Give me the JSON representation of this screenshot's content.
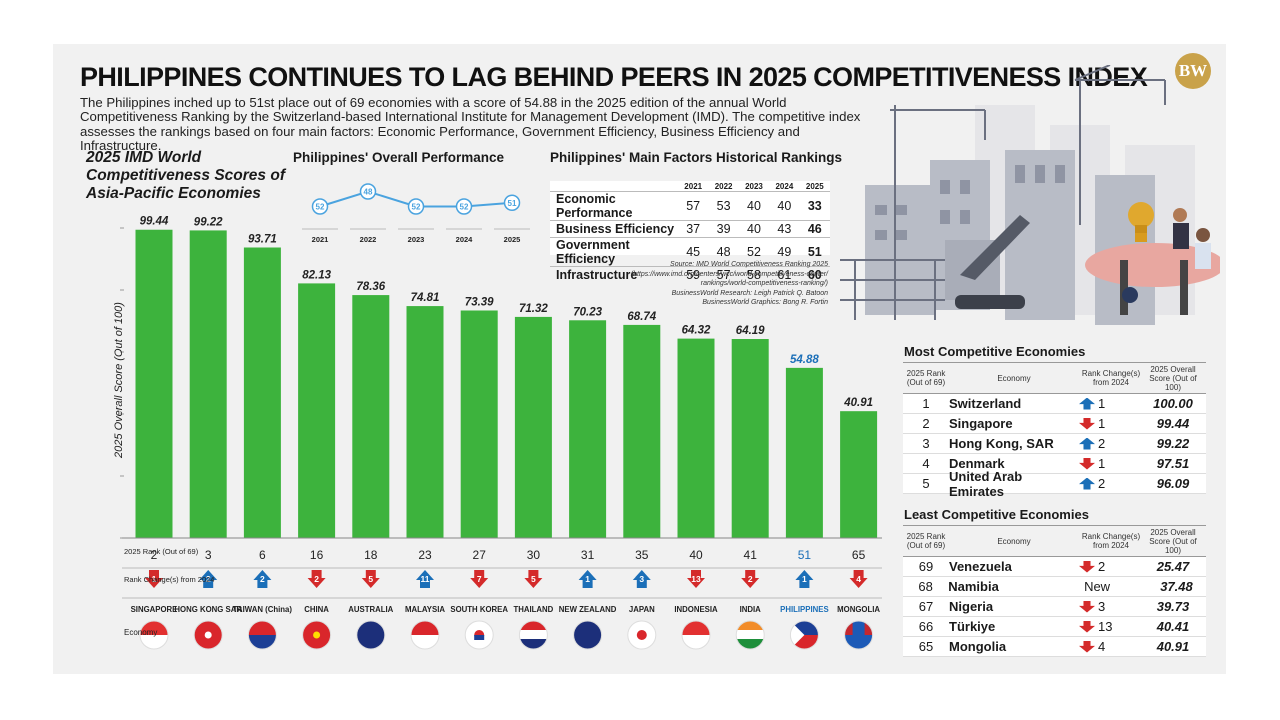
{
  "title": "PHILIPPINES CONTINUES TO LAG BEHIND PEERS IN 2025 COMPETITIVENESS INDEX",
  "intro": "The Philippines inched up to 51st place out of 69 economies with a score of 54.88 in the 2025 edition of the annual World Competitiveness Ranking by the Switzerland-based International Institute for Management Development (IMD). The competitive index assesses the rankings based on four main factors: Economic Performance, Government Efficiency, Business Efficiency and Infrastructure.",
  "logo": "BW",
  "colors": {
    "bar": "#3db33d",
    "highlight": "#1b6fb8",
    "up": "#1b6fb8",
    "down": "#d42a2a",
    "line": "#4aa3df"
  },
  "chart_data": [
    {
      "type": "bar",
      "title": "2025 IMD World Competitiveness Scores of Asia-Pacific Economies",
      "ylabel": "2025 Overall Score (Out of 100)",
      "ylim": [
        0,
        100
      ],
      "categories": [
        "SINGAPORE",
        "HONG KONG SAR",
        "TAIWAN (China)",
        "CHINA",
        "AUSTRALIA",
        "MALAYSIA",
        "SOUTH KOREA",
        "THAILAND",
        "NEW ZEALAND",
        "JAPAN",
        "INDONESIA",
        "INDIA",
        "PHILIPPINES",
        "MONGOLIA"
      ],
      "values": [
        99.44,
        99.22,
        93.71,
        82.13,
        78.36,
        74.81,
        73.39,
        71.32,
        70.23,
        68.74,
        64.32,
        64.19,
        54.88,
        40.91
      ],
      "ranks": [
        "2",
        "3",
        "6",
        "16",
        "18",
        "23",
        "27",
        "30",
        "31",
        "35",
        "40",
        "41",
        "51",
        "65"
      ],
      "rank_changes": [
        {
          "dir": "down",
          "value": "1"
        },
        {
          "dir": "up",
          "value": "2"
        },
        {
          "dir": "up",
          "value": "2"
        },
        {
          "dir": "down",
          "value": "2"
        },
        {
          "dir": "down",
          "value": "5"
        },
        {
          "dir": "up",
          "value": "11"
        },
        {
          "dir": "down",
          "value": "7"
        },
        {
          "dir": "down",
          "value": "5"
        },
        {
          "dir": "up",
          "value": "1"
        },
        {
          "dir": "up",
          "value": "3"
        },
        {
          "dir": "down",
          "value": "13"
        },
        {
          "dir": "down",
          "value": "2"
        },
        {
          "dir": "up",
          "value": "1"
        },
        {
          "dir": "down",
          "value": "4"
        }
      ],
      "highlight": "PHILIPPINES",
      "row_labels": {
        "rank": "2025 Rank (Out of 69)",
        "change": "Rank Change(s) from 2024",
        "economy": "Economy"
      }
    },
    {
      "type": "line",
      "title": "Philippines' Overall Performance",
      "x": [
        "2021",
        "2022",
        "2023",
        "2024",
        "2025"
      ],
      "values": [
        52,
        48,
        52,
        52,
        51
      ]
    },
    {
      "type": "table",
      "title": "Philippines' Main Factors Historical Rankings",
      "columns": [
        "2021",
        "2022",
        "2023",
        "2024",
        "2025"
      ],
      "rows": [
        {
          "label": "Economic Performance",
          "values": [
            "57",
            "53",
            "40",
            "40",
            "33"
          ]
        },
        {
          "label": "Business Efficiency",
          "values": [
            "37",
            "39",
            "40",
            "43",
            "46"
          ]
        },
        {
          "label": "Government Efficiency",
          "values": [
            "45",
            "48",
            "52",
            "49",
            "51"
          ]
        },
        {
          "label": "Infrastructure",
          "values": [
            "59",
            "57",
            "58",
            "61",
            "60"
          ]
        }
      ]
    }
  ],
  "source": {
    "line1": "Source: IMD World Competitiveness Ranking 2025",
    "line2": "(https://www.imd.org/centers/wcc/world-competitiveness-center/",
    "line3": "rankings/world-competitiveness-ranking/)",
    "line4": "BusinessWorld Research: Leigh Patrick Q. Batoon",
    "line5": "BusinessWorld Graphics: Bong R. Fortin"
  },
  "most": {
    "title": "Most Competitive Economies",
    "head": {
      "rank": "2025 Rank (Out of 69)",
      "economy": "Economy",
      "change": "Rank Change(s) from 2024",
      "score": "2025 Overall Score (Out of 100)"
    },
    "rows": [
      {
        "rank": "1",
        "economy": "Switzerland",
        "dir": "up",
        "change": "1",
        "score": "100.00"
      },
      {
        "rank": "2",
        "economy": "Singapore",
        "dir": "down",
        "change": "1",
        "score": "99.44"
      },
      {
        "rank": "3",
        "economy": "Hong Kong, SAR",
        "dir": "up",
        "change": "2",
        "score": "99.22"
      },
      {
        "rank": "4",
        "economy": "Denmark",
        "dir": "down",
        "change": "1",
        "score": "97.51"
      },
      {
        "rank": "5",
        "economy": "United Arab Emirates",
        "dir": "up",
        "change": "2",
        "score": "96.09"
      }
    ]
  },
  "least": {
    "title": "Least Competitive Economies",
    "head": {
      "rank": "2025 Rank (Out of 69)",
      "economy": "Economy",
      "change": "Rank Change(s) from 2024",
      "score": "2025 Overall Score (Out of 100)"
    },
    "rows": [
      {
        "rank": "69",
        "economy": "Venezuela",
        "dir": "down",
        "change": "2",
        "score": "25.47"
      },
      {
        "rank": "68",
        "economy": "Namibia",
        "dir": "none",
        "change": "New",
        "score": "37.48"
      },
      {
        "rank": "67",
        "economy": "Nigeria",
        "dir": "down",
        "change": "3",
        "score": "39.73"
      },
      {
        "rank": "66",
        "economy": "Türkiye",
        "dir": "down",
        "change": "13",
        "score": "40.41"
      },
      {
        "rank": "65",
        "economy": "Mongolia",
        "dir": "down",
        "change": "4",
        "score": "40.91"
      }
    ]
  }
}
